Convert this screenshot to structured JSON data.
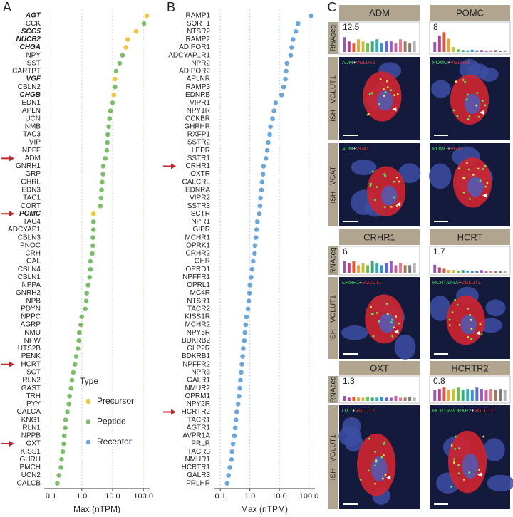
{
  "chart_data": [
    {
      "type": "dot",
      "panel": "A",
      "x_label": "Max (nTPM)",
      "log_x": true,
      "grid": true,
      "grid_color": "#b9d9a8",
      "highlight_color": "#c0272d",
      "xlim": [
        0.06,
        160
      ],
      "xticks": [
        0.1,
        {
          "value": 1,
          "label": "1.0"
        },
        {
          "value": 10,
          "label": "10.0"
        },
        {
          "value": 100,
          "label": "100.0"
        }
      ],
      "legend": {
        "title": "Type",
        "entries": [
          {
            "name": "Precursor",
            "color": "#f3c443"
          },
          {
            "name": "Peptide",
            "color": "#7dbd68"
          },
          {
            "name": "Receptor",
            "color": "#6aa6dc"
          }
        ]
      },
      "categories": [
        "AGT",
        "CCK",
        "SCG5",
        "NUCB2",
        "CHGA",
        "NPY",
        "SST",
        "CARTPT",
        "VGF",
        "CBLN2",
        "CHGB",
        "EDN1",
        "APLN",
        "UCN",
        "NMB",
        "TAC3",
        "VIP",
        "NPFF",
        "ADM",
        "GNRH1",
        "GRP",
        "GHRL",
        "EDN3",
        "TAC1",
        "CORT",
        "POMC",
        "TAC4",
        "ADCYAP1",
        "CBLN3",
        "PNOC",
        "CRH",
        "GAL",
        "CBLN4",
        "CBLN1",
        "NPPA",
        "GNRH2",
        "NPB",
        "PDYN",
        "NPPC",
        "AGRP",
        "NMU",
        "NPW",
        "UTS2B",
        "PENK",
        "HCRT",
        "SCT",
        "RLN2",
        "GAST",
        "TRH",
        "PYY",
        "CALCA",
        "KNG1",
        "RLN1",
        "NPPB",
        "OXT",
        "KISS1",
        "GHRH",
        "PMCH",
        "UCN2",
        "CALCB"
      ],
      "values": [
        130,
        105,
        58,
        31,
        27,
        21,
        17,
        13,
        12,
        12,
        11,
        10,
        8.6,
        8,
        7.5,
        7,
        6.8,
        6.5,
        5.8,
        5,
        4.9,
        4.6,
        4.4,
        4.2,
        4,
        2.4,
        2.4,
        2.4,
        2.3,
        2.3,
        2.2,
        1.9,
        1.9,
        1.8,
        1.6,
        1.45,
        1.4,
        1.3,
        1.0,
        0.93,
        0.83,
        0.8,
        0.75,
        0.66,
        0.6,
        0.53,
        0.48,
        0.45,
        0.4,
        0.38,
        0.34,
        0.3,
        0.29,
        0.27,
        0.26,
        0.24,
        0.22,
        0.21,
        0.18,
        0.16
      ],
      "point_types": [
        "Precursor",
        "Peptide",
        "Precursor",
        "Precursor",
        "Precursor",
        "Peptide",
        "Peptide",
        "Peptide",
        "Precursor",
        "Peptide",
        "Precursor",
        "Peptide",
        "Peptide",
        "Peptide",
        "Peptide",
        "Peptide",
        "Peptide",
        "Peptide",
        "Peptide",
        "Peptide",
        "Peptide",
        "Peptide",
        "Peptide",
        "Peptide",
        "Peptide",
        "Precursor",
        "Peptide",
        "Peptide",
        "Peptide",
        "Peptide",
        "Peptide",
        "Peptide",
        "Peptide",
        "Peptide",
        "Peptide",
        "Peptide",
        "Peptide",
        "Peptide",
        "Peptide",
        "Peptide",
        "Peptide",
        "Peptide",
        "Peptide",
        "Peptide",
        "Peptide",
        "Peptide",
        "Peptide",
        "Peptide",
        "Peptide",
        "Peptide",
        "Peptide",
        "Peptide",
        "Peptide",
        "Peptide",
        "Peptide",
        "Peptide",
        "Peptide",
        "Peptide",
        "Peptide",
        "Peptide"
      ],
      "label_styles": [
        "bold-italic",
        null,
        "bold-italic",
        "bold-italic",
        "bold-italic",
        null,
        null,
        null,
        "bold-italic",
        null,
        "bold-italic",
        null,
        null,
        null,
        null,
        null,
        null,
        null,
        "red",
        null,
        null,
        null,
        null,
        null,
        null,
        "red-bold-italic",
        null,
        null,
        null,
        null,
        null,
        null,
        null,
        null,
        null,
        null,
        null,
        null,
        null,
        null,
        null,
        null,
        null,
        null,
        "red",
        null,
        null,
        null,
        null,
        null,
        null,
        null,
        null,
        null,
        "red",
        null,
        null,
        null,
        null,
        null
      ]
    },
    {
      "type": "dot",
      "panel": "B",
      "x_label": "Max (nTPM)",
      "log_x": true,
      "grid": true,
      "grid_color": "#a9cde8",
      "highlight_color": "#c0272d",
      "point_type": "Receptor",
      "xlim": [
        0.06,
        160
      ],
      "xticks": [
        0.1,
        {
          "value": 1,
          "label": "1.0"
        },
        {
          "value": 10,
          "label": "10.0"
        },
        {
          "value": 100,
          "label": "100.0"
        }
      ],
      "categories": [
        "RAMP1",
        "SORT1",
        "NTSR2",
        "RAMP2",
        "ADIPOR1",
        "ADCYAP1R1",
        "NPR2",
        "ADIPOR2",
        "APLNR",
        "RAMP3",
        "EDNRB",
        "VIPR1",
        "NPY1R",
        "CCKBR",
        "GHRHR",
        "RXFP1",
        "SSTR2",
        "LEPR",
        "SSTR1",
        "CRHR1",
        "OXTR",
        "CALCRL",
        "EDNRA",
        "VIPR2",
        "SSTR3",
        "SCTR",
        "NPR1",
        "GIPR",
        "MCHR1",
        "OPRK1",
        "CRHR2",
        "GHR",
        "OPRD1",
        "NPFFR1",
        "OPRL1",
        "MC4R",
        "NTSR1",
        "TACR2",
        "KISS1R",
        "MCHR2",
        "NPY5R",
        "BDKRB2",
        "GLP2R",
        "BDKRB1",
        "NPFFR2",
        "NPR3",
        "GALR1",
        "NMUR2",
        "OPRM1",
        "NPY2R",
        "HCRTR2",
        "TACR1",
        "AGTR1",
        "AVPR1A",
        "PRLR",
        "TACR3",
        "NMUR1",
        "HCRTR1",
        "GALR3",
        "PRLHR"
      ],
      "values": [
        120,
        43,
        36,
        29,
        26,
        24,
        18,
        17,
        16,
        14,
        12,
        7.5,
        6.6,
        5.9,
        5,
        4.7,
        4.2,
        3.9,
        3.5,
        2.9,
        2.8,
        2.6,
        2.5,
        2.3,
        2.2,
        2.1,
        1.8,
        1.7,
        1.6,
        1.5,
        1.45,
        1.3,
        1.2,
        1.1,
        1.0,
        0.97,
        0.92,
        0.87,
        0.77,
        0.73,
        0.68,
        0.65,
        0.6,
        0.57,
        0.54,
        0.51,
        0.48,
        0.46,
        0.43,
        0.4,
        0.36,
        0.34,
        0.32,
        0.3,
        0.27,
        0.25,
        0.24,
        0.21,
        0.19,
        0.17
      ],
      "label_styles": [
        null,
        null,
        null,
        null,
        null,
        null,
        null,
        null,
        null,
        null,
        null,
        null,
        null,
        null,
        null,
        null,
        null,
        null,
        null,
        "red",
        null,
        null,
        null,
        null,
        null,
        null,
        null,
        null,
        null,
        null,
        null,
        null,
        null,
        null,
        null,
        null,
        null,
        null,
        null,
        null,
        null,
        null,
        null,
        null,
        null,
        null,
        null,
        null,
        null,
        null,
        "red",
        null,
        null,
        null,
        null,
        null,
        null,
        null,
        null,
        null
      ]
    }
  ],
  "panel_c": {
    "panel": "C",
    "row_labels": {
      "rnaseq": "RNAseq",
      "vglut1": "ISH - VGLUT1",
      "vgat": "ISH - VGAT"
    },
    "caption_colors": [
      "#4cd964",
      "#ffffff",
      "#ff3b30"
    ],
    "bar_colors": [
      "#8e5ea2",
      "#c03d8e",
      "#e3572f",
      "#e8a33a",
      "#c5c23a",
      "#6cbf4a",
      "#3aa97a",
      "#2fb0b8",
      "#3b8fd1",
      "#5d6bd1",
      "#9b59c9",
      "#d05aa8",
      "#e37a8c",
      "#a0785a",
      "#7a7a7a",
      "#b5b5b5"
    ],
    "genes": [
      {
        "name": "ADM",
        "max": 12.5,
        "bars": [
          7,
          5,
          4,
          6,
          5,
          4,
          5,
          6,
          4,
          5,
          5,
          4,
          6,
          5,
          4,
          5
        ],
        "vglut1_caption": [
          "ADM",
          "+",
          "VGLUT1"
        ],
        "vgat_caption": [
          "ADM",
          "+",
          "VGAT"
        ]
      },
      {
        "name": "POMC",
        "max": 8,
        "bars": [
          3,
          5,
          6,
          4,
          1.5,
          0.8,
          0.6,
          0.5,
          0.7,
          0.5,
          0.6,
          0.4,
          0.5,
          0.6,
          0.4,
          0.5
        ],
        "vglut1_caption": [
          "POMC",
          "+",
          "VGLUT1"
        ],
        "vgat_caption": [
          "POMC",
          "+",
          "VGAT"
        ]
      },
      {
        "name": "CRHR1",
        "max": 6,
        "bars": [
          3,
          2.5,
          3,
          2,
          2.5,
          2,
          3,
          2.5,
          2,
          2.5,
          3,
          2,
          2.5,
          2,
          2,
          2.5
        ],
        "vglut1_caption": [
          "CRHR1",
          "+",
          "VGLUT1"
        ]
      },
      {
        "name": "HCRT",
        "max": 1.7,
        "bars": [
          0.6,
          0.4,
          0.3,
          0.2,
          0.2,
          0.15,
          0.2,
          0.15,
          0.1,
          0.15,
          0.2,
          0.1,
          0.15,
          0.1,
          0.1,
          0.15
        ],
        "vglut1_caption": [
          "HCRT/ORX",
          "+",
          "VGLUT1"
        ]
      },
      {
        "name": "OXT",
        "max": 1.3,
        "bars": [
          0.3,
          0.2,
          0.25,
          0.2,
          0.2,
          0.25,
          0.2,
          0.2,
          0.25,
          0.2,
          0.2,
          0.3,
          0.2,
          0.2,
          0.25,
          0.2
        ],
        "vglut1_caption": [
          "OXT",
          "+",
          "VGLUT1"
        ]
      },
      {
        "name": "HCRTR2",
        "max": 0.8,
        "bars": [
          0.4,
          0.45,
          0.5,
          0.4,
          0.45,
          0.5,
          0.4,
          0.45,
          0.4,
          0.5,
          0.45,
          0.4,
          0.45,
          0.4,
          0.45,
          0.4
        ],
        "vglut1_caption": [
          "HCRTR2/ORXR2",
          "+",
          "VGLUT1"
        ]
      }
    ]
  }
}
